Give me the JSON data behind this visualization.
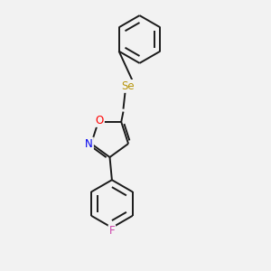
{
  "background_color": "#f2f2f2",
  "bond_color": "#1a1a1a",
  "atom_colors": {
    "O": "#ff0000",
    "N": "#0000ee",
    "Se": "#b8960c",
    "F": "#cc44aa"
  },
  "line_width": 1.4,
  "figsize": [
    3.0,
    3.0
  ],
  "dpi": 100
}
